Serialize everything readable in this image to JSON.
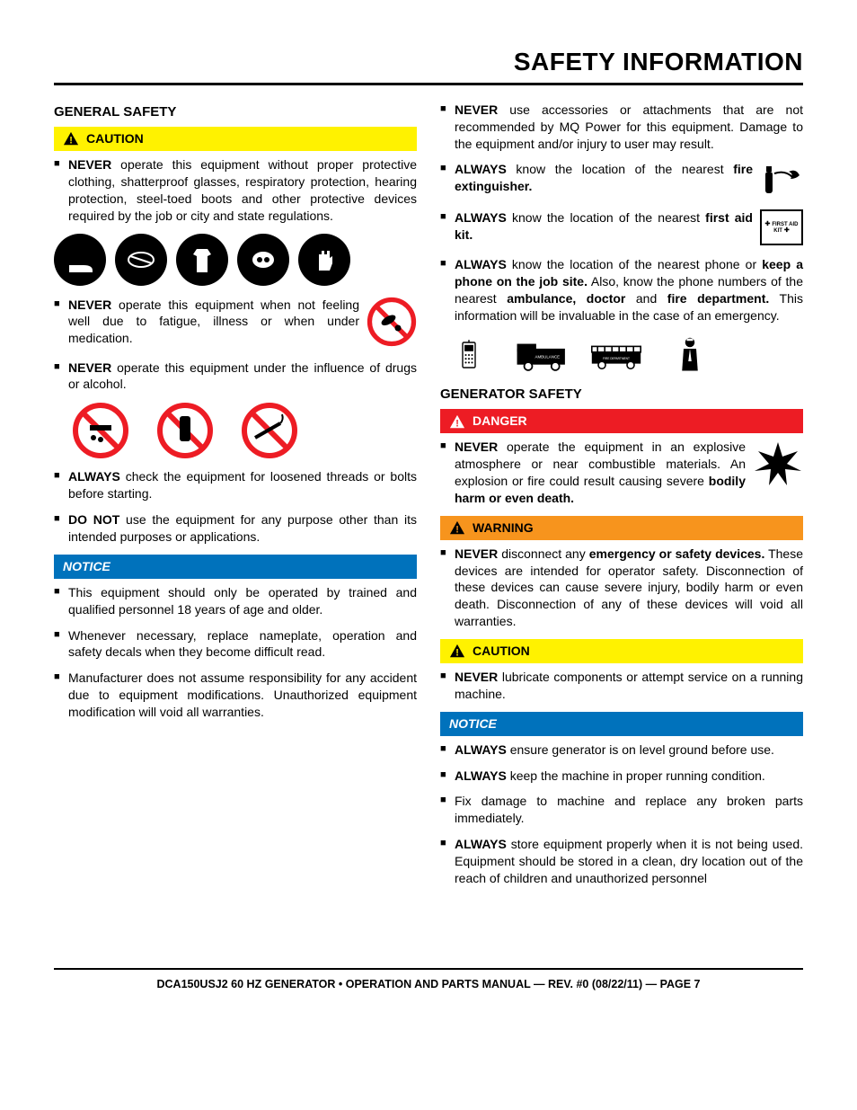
{
  "page_title": "SAFETY INFORMATION",
  "footer": "DCA150USJ2 60 HZ GENERATOR • OPERATION AND PARTS MANUAL — REV. #0 (08/22/11) — PAGE 7",
  "colors": {
    "caution_bg": "#fff200",
    "danger_bg": "#ed1c24",
    "warning_bg": "#f7941d",
    "notice_bg": "#0072bc",
    "text": "#000000",
    "rule": "#000000"
  },
  "labels": {
    "caution": "CAUTION",
    "danger": "DANGER",
    "warning": "WARNING",
    "notice": "NOTICE"
  },
  "left": {
    "heading": "GENERAL SAFETY",
    "caution_items": [
      "<b>NEVER</b> operate this equipment without proper protective clothing, shatterproof glasses, respiratory protection, hearing protection, steel-toed boots and other protective devices required by the job or city and state regulations.",
      "<b>NEVER</b> operate this equipment when not feeling well due to fatigue, illness or when under medication.",
      "<b>NEVER</b> operate this equipment under the influence of drugs or alcohol.",
      "<b>ALWAYS</b> check the equipment for loosened threads or bolts before starting.",
      "<b>DO NOT</b> use the equipment for any purpose other than its intended purposes or applications."
    ],
    "notice_items": [
      "This equipment should only be operated by trained and qualified personnel 18 years of age and older.",
      "Whenever necessary, replace nameplate, operation and safety decals when they become difficult read.",
      "Manufacturer does not assume responsibility for any accident due to equipment modifications. Unauthorized equipment modification will void all warranties."
    ]
  },
  "right": {
    "top_items": [
      "<b>NEVER</b> use accessories or attachments that are not recommended by MQ Power for this equipment. Damage to the equipment and/or injury to user may result.",
      "<b>ALWAYS</b> know the location of the nearest <b>fire extinguisher.</b>",
      "<b>ALWAYS</b> know the location of the nearest <b>first aid kit.</b>",
      "<b>ALWAYS</b> know the location of the nearest phone or <b>keep a phone on the job site.</b> Also, know the phone numbers of the nearest <b>ambulance, doctor</b> and <b>fire department.</b> This information will be invaluable in the case of an emergency."
    ],
    "gen_heading": "GENERATOR SAFETY",
    "danger_items": [
      "<b>NEVER</b> operate the equipment in an explosive atmosphere or near combustible materials. An explosion or fire could result causing severe <b>bodily harm or even death.</b>"
    ],
    "warning_items": [
      "<b>NEVER</b> disconnect any <b>emergency or safety devices.</b> These devices are intended for operator safety. Disconnection of these devices can cause severe injury, bodily harm or even death. Disconnection of any of these devices will void all warranties."
    ],
    "caution_items": [
      "<b>NEVER</b> lubricate components or attempt service on a running machine."
    ],
    "notice_items": [
      "<b>ALWAYS</b> ensure generator is on level ground before use.",
      "<b>ALWAYS</b> keep the machine in proper running condition.",
      "Fix damage to machine and replace any broken parts immediately.",
      "<b>ALWAYS</b> store equipment properly when it is not being used. Equipment should be stored in a clean, dry location out of the reach of children and unauthorized personnel"
    ],
    "first_aid_label": "FIRST AID KIT"
  }
}
